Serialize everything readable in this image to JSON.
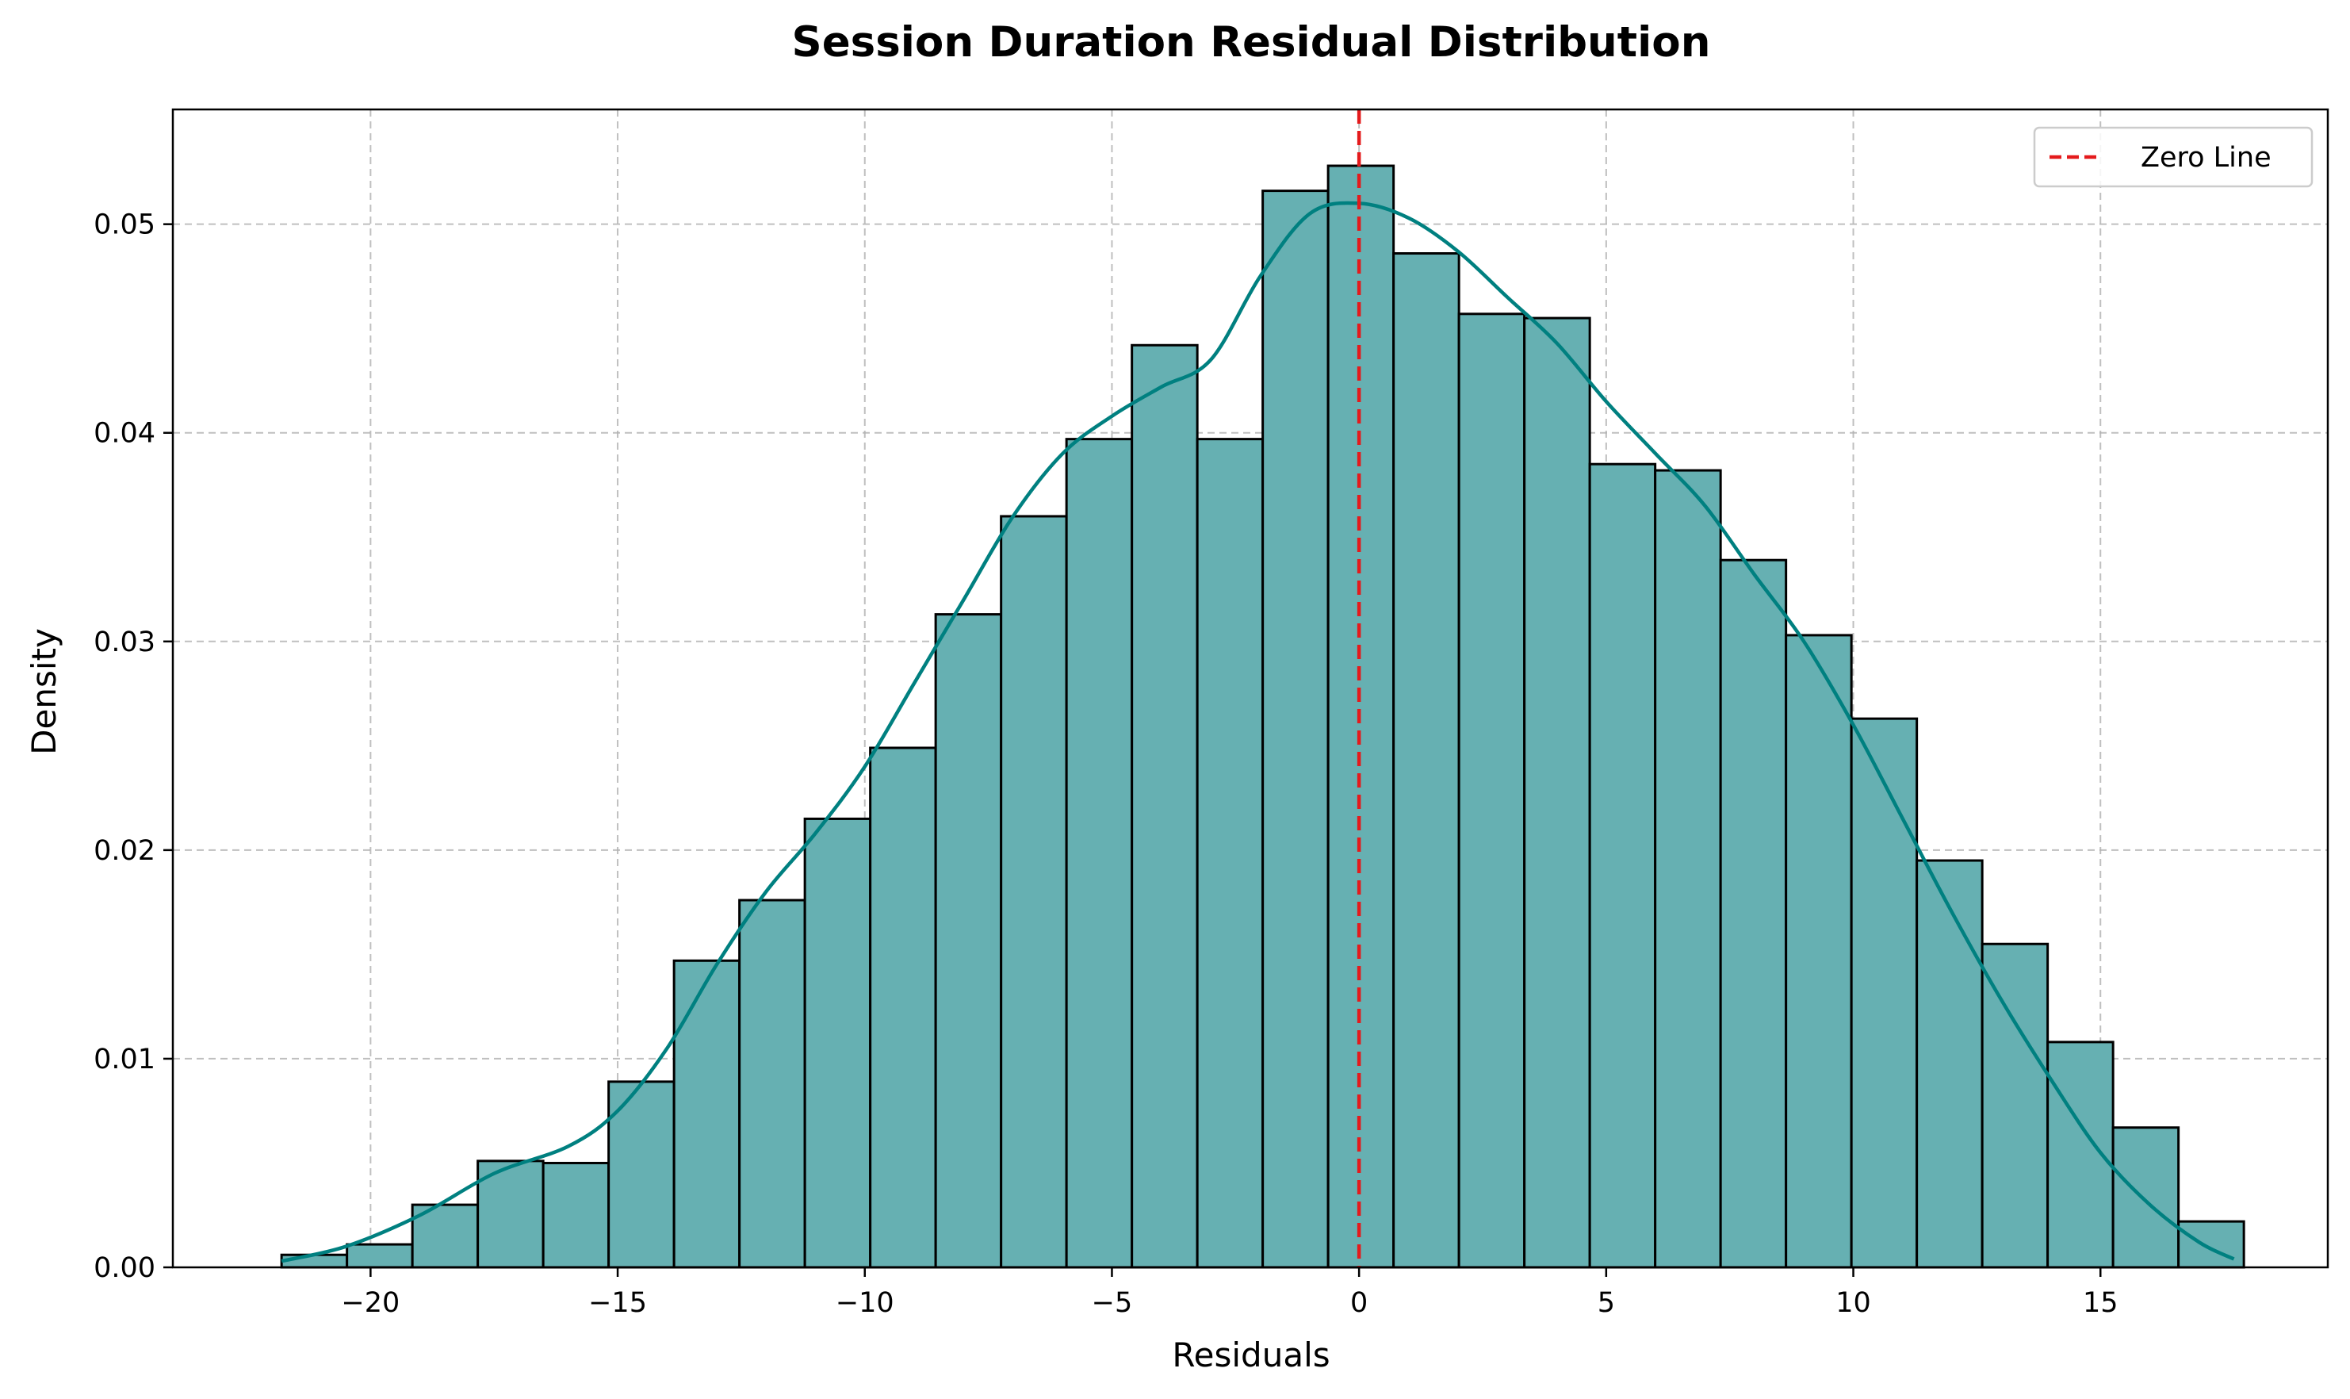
{
  "chart_data": {
    "type": "bar",
    "title": "Session Duration Residual Distribution",
    "xlabel": "Residuals",
    "ylabel": "Density",
    "xlim": [
      -24.0,
      19.6
    ],
    "ylim": [
      0,
      0.0555
    ],
    "xticks": [
      -20,
      -15,
      -10,
      -5,
      0,
      5,
      10,
      15
    ],
    "yticks": [
      0.0,
      0.01,
      0.02,
      0.03,
      0.04,
      0.05
    ],
    "xtick_labels": [
      "−20",
      "−15",
      "−10",
      "−5",
      "0",
      "5",
      "10",
      "15"
    ],
    "ytick_labels": [
      "0.00",
      "0.01",
      "0.02",
      "0.03",
      "0.04",
      "0.05"
    ],
    "grid": true,
    "bins": {
      "start": -21.8,
      "width": 1.3234,
      "densities": [
        0.0006,
        0.0011,
        0.003,
        0.0051,
        0.005,
        0.0089,
        0.0147,
        0.0176,
        0.0215,
        0.0249,
        0.0313,
        0.036,
        0.0397,
        0.0442,
        0.0397,
        0.0516,
        0.0528,
        0.0486,
        0.0457,
        0.0455,
        0.0385,
        0.0382,
        0.0339,
        0.0303,
        0.0263,
        0.0195,
        0.0155,
        0.0108,
        0.0067,
        0.0022
      ]
    },
    "kde": {
      "x": [
        -21.8,
        -20.5,
        -19.0,
        -17.5,
        -16.0,
        -15.0,
        -14.0,
        -13.0,
        -12.0,
        -11.0,
        -10.0,
        -9.0,
        -8.0,
        -7.0,
        -6.0,
        -5.0,
        -4.0,
        -3.0,
        -2.0,
        -1.0,
        0.0,
        1.0,
        2.0,
        3.0,
        4.0,
        5.0,
        6.0,
        7.0,
        8.0,
        9.0,
        10.0,
        11.0,
        12.0,
        13.0,
        14.0,
        15.0,
        16.0,
        17.0,
        17.7
      ],
      "y": [
        0.0003,
        0.001,
        0.0025,
        0.0045,
        0.0058,
        0.0075,
        0.0105,
        0.0145,
        0.018,
        0.0208,
        0.024,
        0.028,
        0.032,
        0.036,
        0.039,
        0.0408,
        0.0422,
        0.0435,
        0.0475,
        0.0505,
        0.051,
        0.0503,
        0.0487,
        0.0465,
        0.0443,
        0.0415,
        0.039,
        0.0365,
        0.0332,
        0.03,
        0.026,
        0.0215,
        0.017,
        0.0128,
        0.009,
        0.0055,
        0.003,
        0.0012,
        0.0004
      ]
    },
    "reference_line": {
      "x": 0,
      "label": "Zero Line",
      "color": "#e41a1c",
      "style": "dashed"
    },
    "legend": {
      "entries": [
        "Zero Line"
      ],
      "position": "upper right"
    },
    "colors": {
      "bar_fill": "#66b0b2",
      "bar_edge": "#000000",
      "kde_line": "#008080",
      "grid": "#b0b0b0"
    }
  }
}
